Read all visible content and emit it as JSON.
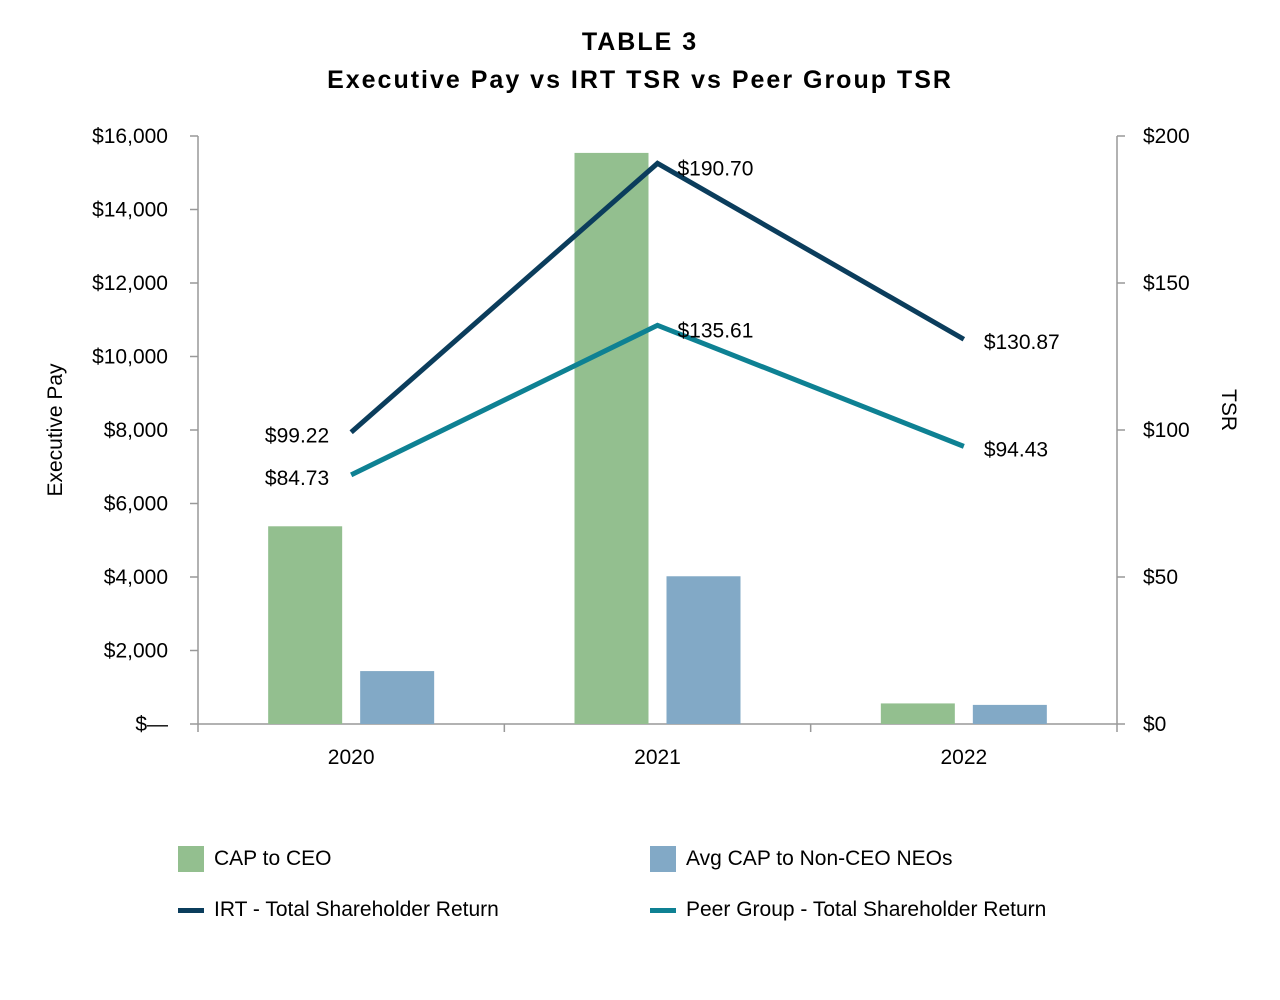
{
  "title": "TABLE 3",
  "subtitle": "Executive Pay vs IRT TSR vs Peer Group TSR",
  "colors": {
    "cap_ceo": "#93bf8f",
    "cap_non_ceo": "#82a9c6",
    "irt_tsr": "#0b3d5c",
    "peer_tsr": "#0e8193",
    "axis": "#999999"
  },
  "chart_data": {
    "type": "bar",
    "title": "Executive Pay vs IRT TSR vs Peer Group TSR",
    "categories": [
      "2020",
      "2021",
      "2022"
    ],
    "ylabel": "Executive Pay",
    "y2label": "TSR",
    "ylim": [
      0,
      16000
    ],
    "y2lim": [
      0,
      200
    ],
    "yticks": [
      0,
      2000,
      4000,
      6000,
      8000,
      10000,
      12000,
      14000,
      16000
    ],
    "ytick_labels": [
      "$—",
      "$2,000",
      "$4,000",
      "$6,000",
      "$8,000",
      "$10,000",
      "$12,000",
      "$14,000",
      "$16,000"
    ],
    "y2ticks": [
      0,
      50,
      100,
      150,
      200
    ],
    "y2tick_labels": [
      "$0",
      "$50",
      "$100",
      "$150",
      "$200"
    ],
    "bar_series": [
      {
        "name": "CAP to CEO",
        "values": [
          5380,
          15540,
          560
        ]
      },
      {
        "name": "Avg CAP to Non-CEO NEOs",
        "values": [
          1440,
          4020,
          520
        ]
      }
    ],
    "line_series": [
      {
        "name": "IRT - Total Shareholder Return",
        "values": [
          99.22,
          190.7,
          130.87
        ],
        "labels": [
          "$99.22",
          "$190.70",
          "$130.87"
        ]
      },
      {
        "name": "Peer Group - Total Shareholder Return",
        "values": [
          84.73,
          135.61,
          94.43
        ],
        "labels": [
          "$84.73",
          "$135.61",
          "$94.43"
        ]
      }
    ],
    "legend": [
      {
        "name": "CAP to CEO",
        "kind": "bar"
      },
      {
        "name": "Avg CAP to Non-CEO NEOs",
        "kind": "bar"
      },
      {
        "name": "IRT - Total Shareholder Return",
        "kind": "line"
      },
      {
        "name": "Peer Group - Total Shareholder Return",
        "kind": "line"
      }
    ],
    "legend_position": "bottom"
  }
}
